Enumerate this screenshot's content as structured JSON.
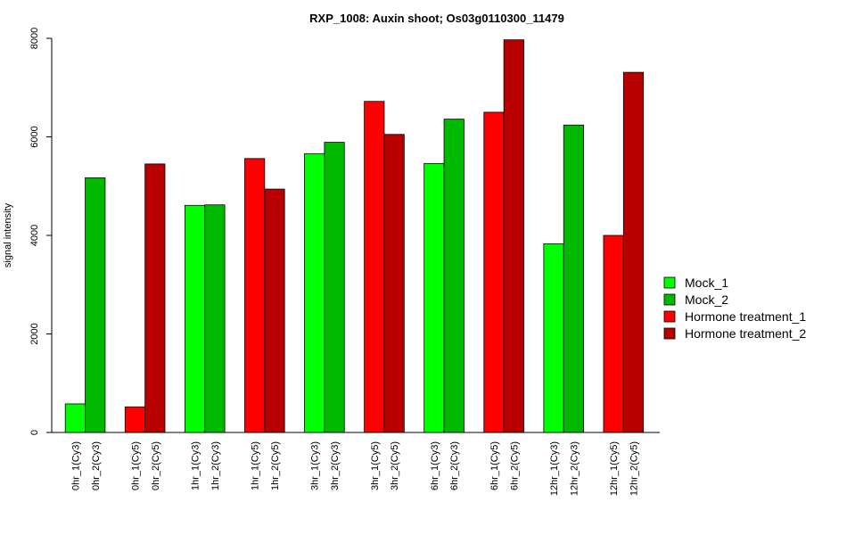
{
  "chart_data": {
    "type": "bar",
    "title": "RXP_1008: Auxin shoot; Os03g0110300_11479",
    "xlabel": "",
    "ylabel": "signal intensity",
    "ylim": [
      0,
      8000
    ],
    "yticks": [
      0,
      2000,
      4000,
      6000,
      8000
    ],
    "categories": [
      "0hr_1(Cy3)",
      "0hr_2(Cy3)",
      "0hr_1(Cy5)",
      "0hr_2(Cy5)",
      "1hr_1(Cy3)",
      "1hr_2(Cy3)",
      "1hr_1(Cy5)",
      "1hr_2(Cy5)",
      "3hr_1(Cy3)",
      "3hr_2(Cy3)",
      "3hr_1(Cy5)",
      "3hr_2(Cy5)",
      "6hr_1(Cy3)",
      "6hr_2(Cy3)",
      "6hr_1(Cy5)",
      "6hr_2(Cy5)",
      "12hr_1(Cy3)",
      "12hr_2(Cy3)",
      "12hr_1(Cy5)",
      "12hr_2(Cy5)"
    ],
    "values": [
      580,
      5170,
      520,
      5450,
      4610,
      4620,
      5560,
      4940,
      5660,
      5890,
      6720,
      6050,
      5460,
      6360,
      6500,
      7970,
      3830,
      6240,
      4000,
      7310
    ],
    "bar_series": [
      "Mock_1",
      "Mock_2",
      "Hormone treatment_1",
      "Hormone treatment_2",
      "Mock_1",
      "Mock_2",
      "Hormone treatment_1",
      "Hormone treatment_2",
      "Mock_1",
      "Mock_2",
      "Hormone treatment_1",
      "Hormone treatment_2",
      "Mock_1",
      "Mock_2",
      "Hormone treatment_1",
      "Hormone treatment_2",
      "Mock_1",
      "Mock_2",
      "Hormone treatment_1",
      "Hormone treatment_2"
    ],
    "legend": [
      {
        "name": "Mock_1",
        "color": "#00ff00"
      },
      {
        "name": "Mock_2",
        "color": "#00b800"
      },
      {
        "name": "Hormone treatment_1",
        "color": "#ff0000"
      },
      {
        "name": "Hormone treatment_2",
        "color": "#b80000"
      }
    ],
    "legend_position": "right",
    "grid": false
  }
}
